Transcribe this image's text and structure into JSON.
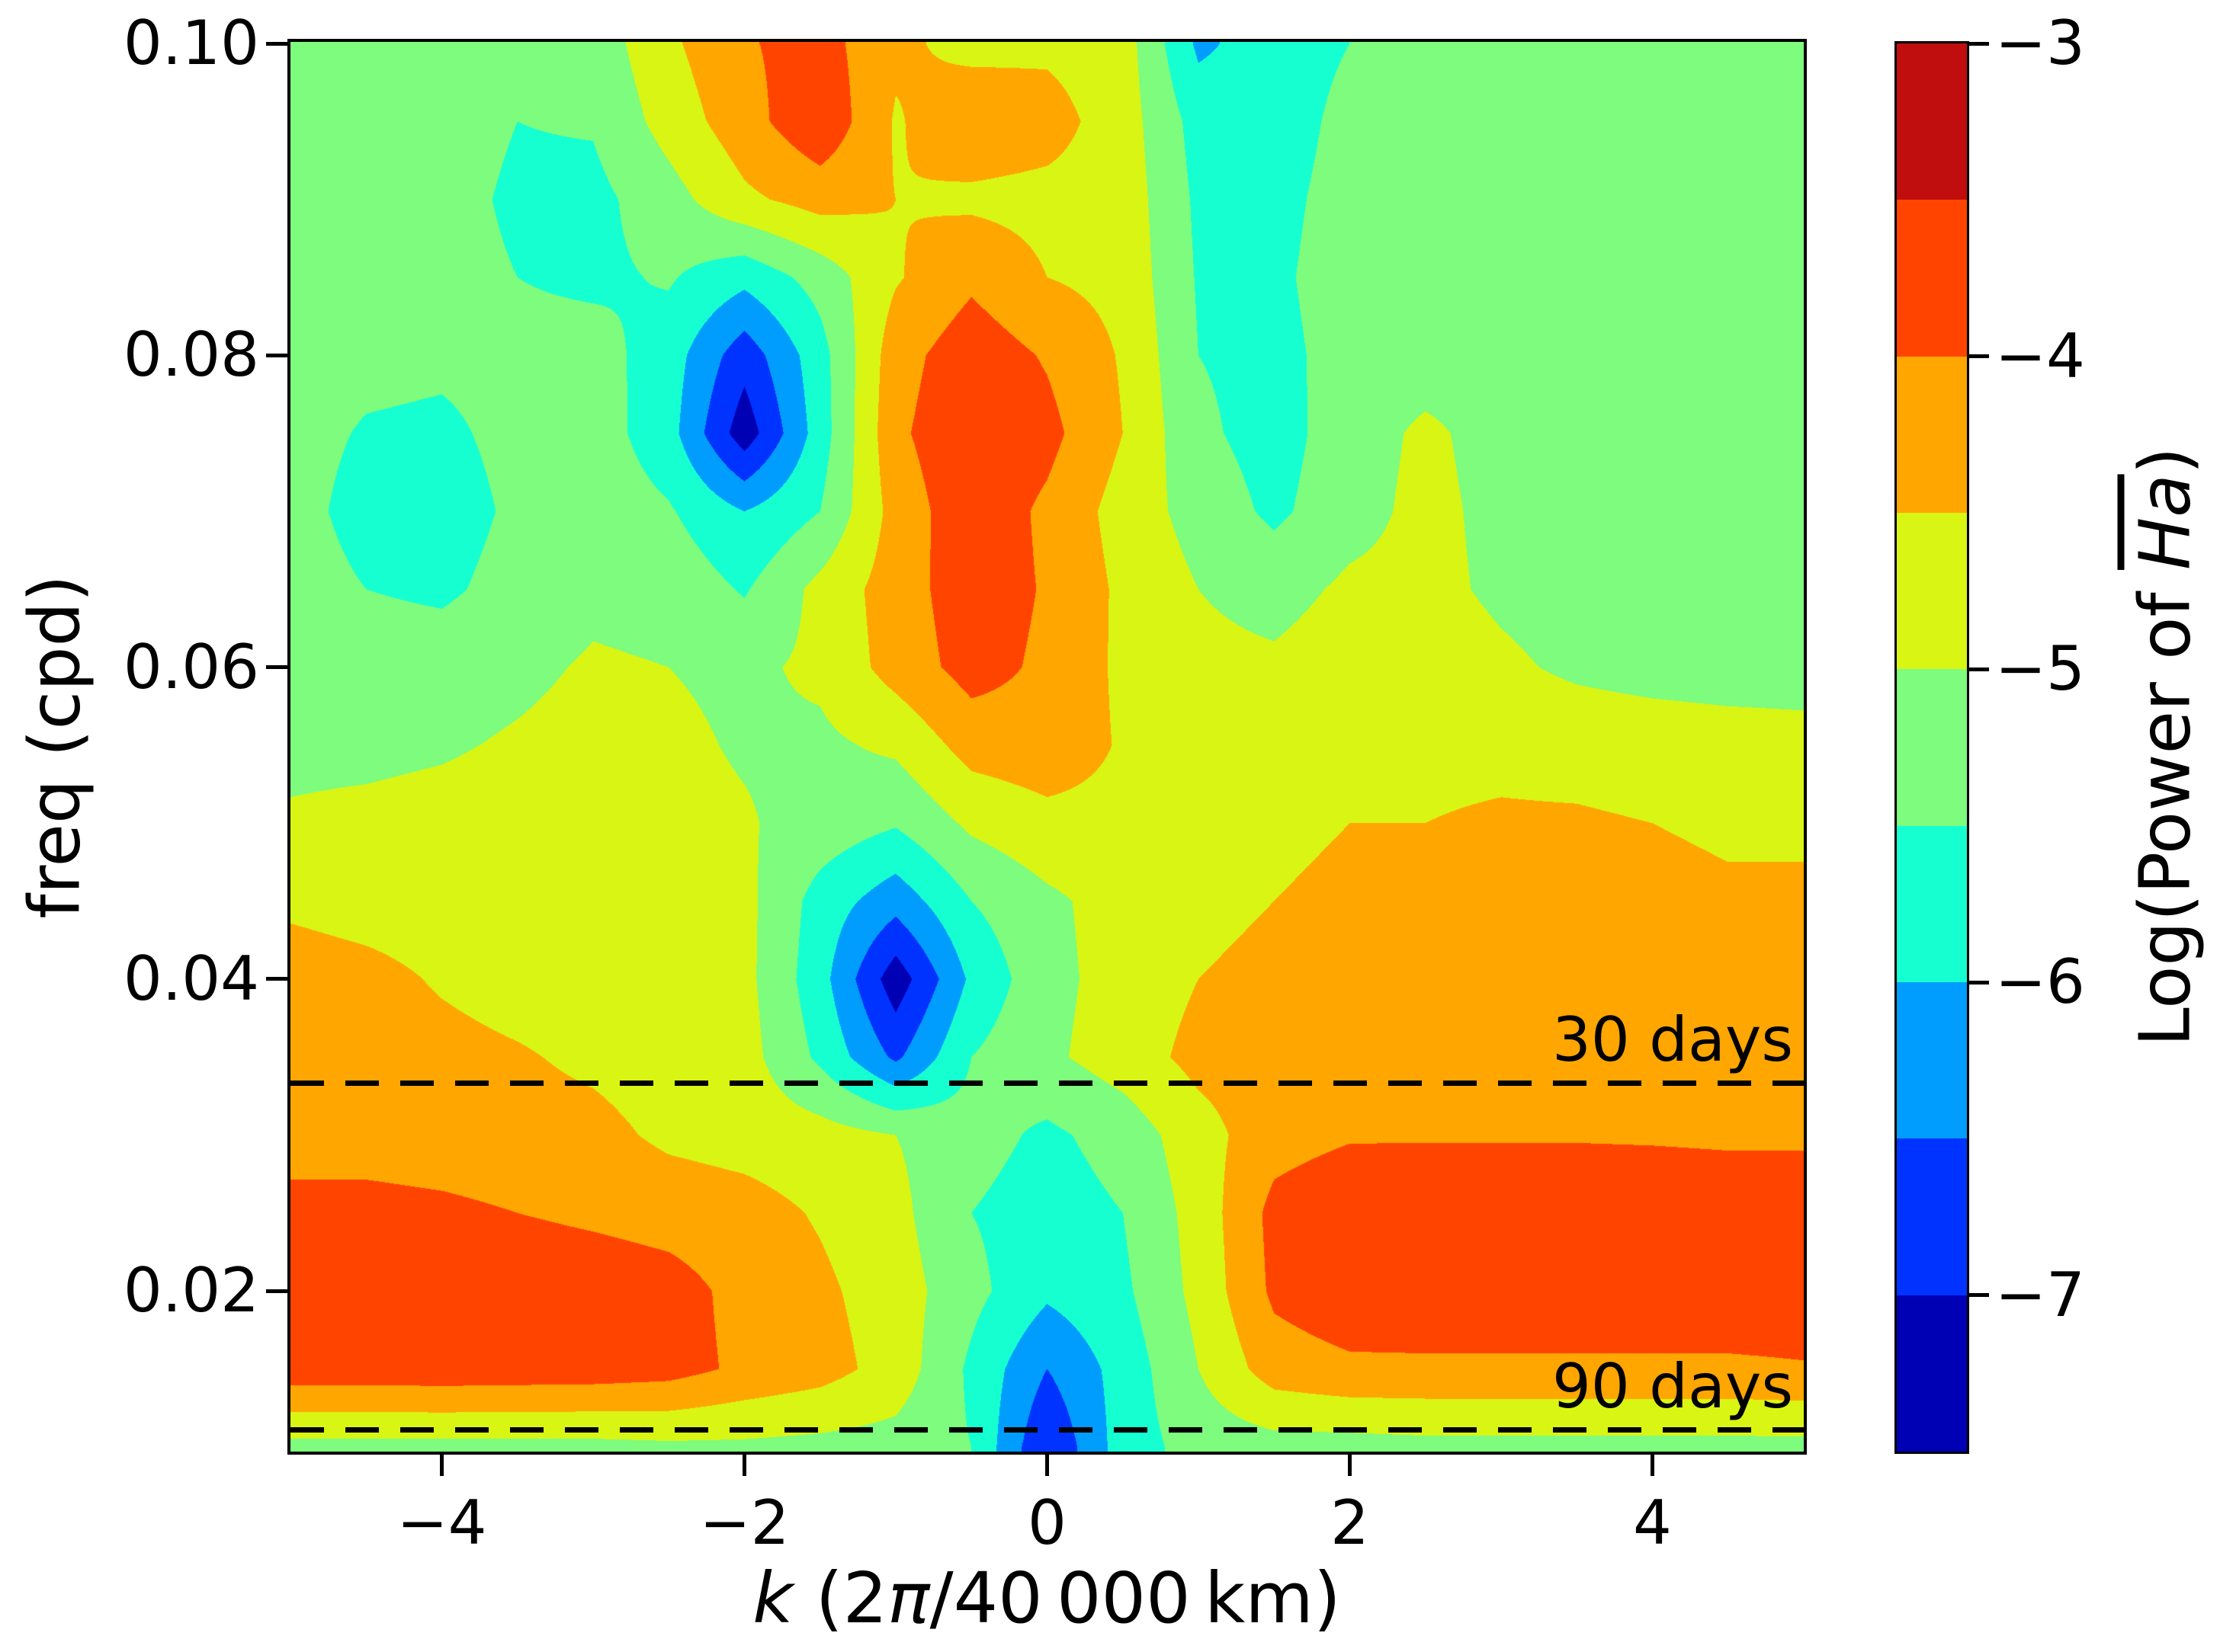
{
  "figure": {
    "ylabel": "freq (cpd)",
    "xlabel_k": "k",
    "xlabel_open": " (2",
    "xlabel_pi": "π",
    "xlabel_close": "/40 000 km)",
    "x_tick_labels": [
      "−4",
      "−2",
      "0",
      "2",
      "4"
    ],
    "x_tick_values": [
      -4,
      -2,
      0,
      2,
      4
    ],
    "y_tick_labels": [
      "0.02",
      "0.04",
      "0.06",
      "0.08",
      "0.10"
    ],
    "y_tick_values": [
      0.02,
      0.04,
      0.06,
      0.08,
      0.1
    ],
    "colorbar": {
      "tick_labels": [
        "−3",
        "−4",
        "−5",
        "−6",
        "−7"
      ],
      "tick_values": [
        -3,
        -4,
        -5,
        -6,
        -7
      ],
      "label_prefix": "Log(Power of ",
      "label_overline": "Ha",
      "label_suffix": ")"
    },
    "annotations": [
      {
        "text": "30 days",
        "freq": 0.03333
      },
      {
        "text": "90 days",
        "freq": 0.01111
      }
    ]
  },
  "chart_data": {
    "type": "filled_contour",
    "xlabel": "k (2π/40 000 km)",
    "ylabel": "freq (cpd)",
    "colorbar_label": "Log(Power of H̄a)",
    "x_axis_range": [
      -5,
      5
    ],
    "freq_axis_range": [
      0.0097,
      0.1001
    ],
    "level_min": -7.5,
    "level_max": -3.0,
    "level_step": 0.5,
    "colorbar_ticks": [
      -3,
      -4,
      -5,
      -6,
      -7
    ],
    "colors": [
      "#0000b4",
      "#0033ff",
      "#009dff",
      "#16ffd1",
      "#7dfc7e",
      "#d9f514",
      "#ffa600",
      "#ff4400",
      "#c00d0d"
    ],
    "reference_lines": [
      {
        "label": "30 days",
        "freq": 0.03333
      },
      {
        "label": "90 days",
        "freq": 0.01111
      }
    ],
    "k": [
      -5,
      -4.5,
      -4,
      -3.5,
      -3,
      -2.5,
      -2,
      -1.5,
      -1,
      -0.5,
      0,
      0.5,
      1,
      1.5,
      2,
      2.5,
      3,
      3.5,
      4,
      4.5,
      5
    ],
    "freq": [
      0.01,
      0.015,
      0.02,
      0.025,
      0.03,
      0.035,
      0.04,
      0.045,
      0.05,
      0.055,
      0.06,
      0.065,
      0.07,
      0.075,
      0.08,
      0.085,
      0.09,
      0.095,
      0.1
    ],
    "log_power": [
      [
        -5.15,
        -5.15,
        -5.15,
        -5.15,
        -5.15,
        -5.1,
        -5.1,
        -5.15,
        -5.2,
        -5.5,
        -7.0,
        -5.75,
        -5.3,
        -5.2,
        -5.2,
        -5.15,
        -5.15,
        -5.15,
        -5.15,
        -5.15,
        -5.15
      ],
      [
        -3.7,
        -3.7,
        -3.68,
        -3.7,
        -3.72,
        -3.8,
        -4.1,
        -4.3,
        -4.7,
        -5.6,
        -6.5,
        -5.8,
        -5.0,
        -4.25,
        -4.1,
        -4.1,
        -4.1,
        -4.1,
        -4.1,
        -4.1,
        -4.05
      ],
      [
        -3.65,
        -3.6,
        -3.6,
        -3.62,
        -3.68,
        -3.8,
        -4.15,
        -4.4,
        -4.75,
        -5.35,
        -5.9,
        -5.6,
        -4.85,
        -3.9,
        -3.65,
        -3.6,
        -3.6,
        -3.6,
        -3.6,
        -3.6,
        -3.6
      ],
      [
        -3.85,
        -3.85,
        -3.9,
        -4.0,
        -4.1,
        -4.2,
        -4.3,
        -4.55,
        -4.85,
        -5.5,
        -5.75,
        -5.5,
        -4.8,
        -3.85,
        -3.6,
        -3.55,
        -3.55,
        -3.55,
        -3.55,
        -3.6,
        -3.6
      ],
      [
        -4.2,
        -4.2,
        -4.25,
        -4.3,
        -4.35,
        -4.6,
        -4.7,
        -4.8,
        -5.0,
        -5.3,
        -5.6,
        -5.3,
        -4.7,
        -4.2,
        -4.05,
        -4.05,
        -4.05,
        -4.05,
        -4.07,
        -4.1,
        -4.1
      ],
      [
        -4.3,
        -4.3,
        -4.35,
        -4.45,
        -4.6,
        -4.75,
        -4.8,
        -5.6,
        -6.6,
        -5.5,
        -5.1,
        -4.75,
        -4.35,
        -4.25,
        -4.2,
        -4.2,
        -4.2,
        -4.2,
        -4.25,
        -4.3,
        -4.3
      ],
      [
        -4.25,
        -4.35,
        -4.55,
        -4.7,
        -4.75,
        -4.8,
        -4.85,
        -5.8,
        -7.3,
        -5.9,
        -5.15,
        -4.8,
        -4.5,
        -4.4,
        -4.35,
        -4.35,
        -4.3,
        -4.3,
        -4.35,
        -4.4,
        -4.4
      ],
      [
        -4.6,
        -4.7,
        -4.75,
        -4.75,
        -4.75,
        -4.8,
        -4.85,
        -5.7,
        -6.3,
        -5.5,
        -5.1,
        -4.8,
        -4.6,
        -4.5,
        -4.4,
        -4.4,
        -4.35,
        -4.35,
        -4.4,
        -4.45,
        -4.45
      ],
      [
        -4.95,
        -4.9,
        -4.85,
        -4.8,
        -4.8,
        -4.85,
        -4.95,
        -5.2,
        -5.45,
        -4.9,
        -4.65,
        -4.65,
        -4.7,
        -4.6,
        -4.5,
        -4.5,
        -4.45,
        -4.45,
        -4.5,
        -4.55,
        -4.55
      ],
      [
        -5.1,
        -5.1,
        -5.05,
        -4.95,
        -4.85,
        -4.9,
        -5.05,
        -5.1,
        -4.9,
        -4.3,
        -4.2,
        -4.55,
        -4.7,
        -4.75,
        -4.65,
        -4.6,
        -4.6,
        -4.65,
        -4.7,
        -4.75,
        -4.8
      ],
      [
        -5.2,
        -5.2,
        -5.2,
        -5.1,
        -4.95,
        -5.0,
        -5.1,
        -4.9,
        -4.3,
        -3.8,
        -4.1,
        -4.6,
        -4.85,
        -4.9,
        -4.7,
        -4.7,
        -4.9,
        -5.1,
        -5.2,
        -5.25,
        -5.25
      ],
      [
        -5.25,
        -5.5,
        -5.6,
        -5.3,
        -5.1,
        -5.15,
        -5.55,
        -4.85,
        -4.25,
        -3.7,
        -4.05,
        -4.6,
        -5.0,
        -5.2,
        -4.9,
        -4.85,
        -5.1,
        -5.25,
        -5.25,
        -5.3,
        -5.3
      ],
      [
        -5.3,
        -5.7,
        -5.75,
        -5.4,
        -5.2,
        -5.45,
        -6.0,
        -5.5,
        -4.3,
        -3.65,
        -4.1,
        -4.7,
        -5.2,
        -5.6,
        -5.2,
        -4.85,
        -5.15,
        -5.3,
        -5.3,
        -5.3,
        -5.3
      ],
      [
        -5.3,
        -5.55,
        -5.6,
        -5.35,
        -5.25,
        -5.8,
        -7.3,
        -5.75,
        -4.1,
        -3.6,
        -3.85,
        -4.5,
        -5.4,
        -5.7,
        -5.25,
        -4.9,
        -5.2,
        -5.3,
        -5.3,
        -5.3,
        -5.3
      ],
      [
        -5.3,
        -5.35,
        -5.4,
        -5.35,
        -5.3,
        -5.75,
        -6.8,
        -5.7,
        -4.2,
        -3.7,
        -4.05,
        -4.55,
        -5.5,
        -5.65,
        -5.3,
        -5.25,
        -5.25,
        -5.25,
        -5.25,
        -5.25,
        -5.25
      ],
      [
        -5.25,
        -5.3,
        -5.3,
        -5.5,
        -5.6,
        -5.45,
        -5.85,
        -5.3,
        -4.55,
        -4.1,
        -4.5,
        -4.65,
        -5.55,
        -5.6,
        -5.25,
        -5.2,
        -5.2,
        -5.2,
        -5.2,
        -5.2,
        -5.2
      ],
      [
        -5.2,
        -5.25,
        -5.3,
        -5.6,
        -5.65,
        -5.2,
        -4.6,
        -4.3,
        -4.5,
        -4.6,
        -4.65,
        -4.7,
        -5.6,
        -5.65,
        -5.3,
        -5.2,
        -5.15,
        -5.15,
        -5.15,
        -5.15,
        -5.15
      ],
      [
        -5.15,
        -5.2,
        -5.25,
        -5.5,
        -5.45,
        -4.8,
        -4.2,
        -3.6,
        -4.55,
        -4.15,
        -4.3,
        -4.75,
        -5.7,
        -5.75,
        -5.35,
        -5.2,
        -5.15,
        -5.1,
        -5.1,
        -5.1,
        -5.1
      ],
      [
        -5.15,
        -5.2,
        -5.25,
        -5.35,
        -5.3,
        -4.6,
        -4.05,
        -3.8,
        -4.4,
        -4.65,
        -4.6,
        -4.75,
        -6.1,
        -5.75,
        -5.5,
        -5.25,
        -5.2,
        -5.15,
        -5.15,
        -5.15,
        -5.15
      ]
    ]
  }
}
